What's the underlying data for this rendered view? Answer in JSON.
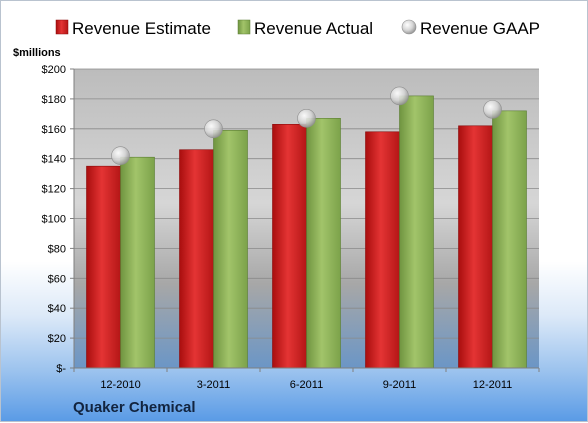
{
  "chart_data": {
    "type": "bar",
    "title": "",
    "xlabel": "",
    "ylabel": "$millions",
    "footer_label": "Quaker Chemical",
    "categories": [
      "12-2010",
      "3-2011",
      "6-2011",
      "9-2011",
      "12-2011"
    ],
    "ylim": [
      0,
      200
    ],
    "y_tick_labels": [
      "$-",
      "$20",
      "$40",
      "$60",
      "$80",
      "$100",
      "$120",
      "$140",
      "$160",
      "$180",
      "$200"
    ],
    "grid": true,
    "legend_position": "top",
    "series": [
      {
        "name": "Revenue Estimate",
        "kind": "bar",
        "color": "#d42020",
        "values": [
          135,
          146,
          163,
          158,
          162
        ]
      },
      {
        "name": "Revenue Actual",
        "kind": "bar",
        "color": "#8cb050",
        "values": [
          141,
          159,
          167,
          182,
          172
        ]
      },
      {
        "name": "Revenue GAAP",
        "kind": "marker",
        "color": "#c9c9c9",
        "values": [
          142,
          160,
          167,
          182,
          173
        ]
      }
    ]
  }
}
